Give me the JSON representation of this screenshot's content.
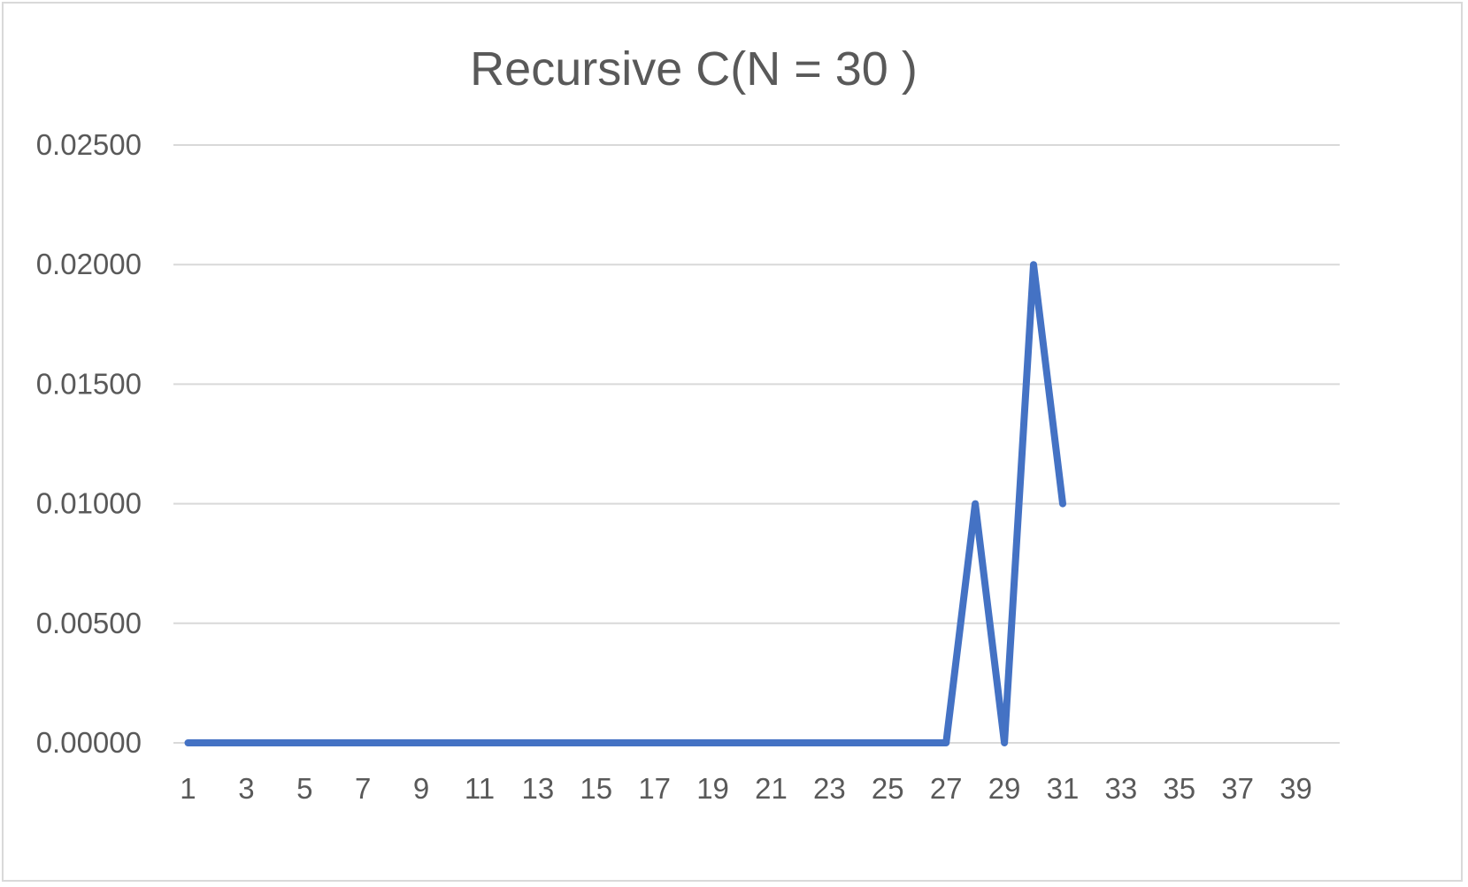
{
  "chart_data": {
    "type": "line",
    "title": "Recursive C(N = 30 )",
    "xlabel": "",
    "ylabel": "",
    "x_categories": [
      1,
      2,
      3,
      4,
      5,
      6,
      7,
      8,
      9,
      10,
      11,
      12,
      13,
      14,
      15,
      16,
      17,
      18,
      19,
      20,
      21,
      22,
      23,
      24,
      25,
      26,
      27,
      28,
      29,
      30,
      31,
      32,
      33,
      34,
      35,
      36,
      37,
      38,
      39,
      40
    ],
    "x_tick_labels": [
      "1",
      "3",
      "5",
      "7",
      "9",
      "11",
      "13",
      "15",
      "17",
      "19",
      "21",
      "23",
      "25",
      "27",
      "29",
      "31",
      "33",
      "35",
      "37",
      "39"
    ],
    "y_tick_labels": [
      "0.00000",
      "0.00500",
      "0.01000",
      "0.01500",
      "0.02000",
      "0.02500"
    ],
    "ylim": [
      0,
      0.025
    ],
    "y_ticks": [
      0,
      0.005,
      0.01,
      0.015,
      0.02,
      0.025
    ],
    "grid": true,
    "legend": "none",
    "series": [
      {
        "color": "#4472c4",
        "x": [
          1,
          2,
          3,
          4,
          5,
          6,
          7,
          8,
          9,
          10,
          11,
          12,
          13,
          14,
          15,
          16,
          17,
          18,
          19,
          20,
          21,
          22,
          23,
          24,
          25,
          26,
          27,
          28,
          29,
          30,
          31
        ],
        "values": [
          0,
          0,
          0,
          0,
          0,
          0,
          0,
          0,
          0,
          0,
          0,
          0,
          0,
          0,
          0,
          0,
          0,
          0,
          0,
          0,
          0,
          0,
          0,
          0,
          0,
          0,
          0,
          0.01,
          0,
          0.02,
          0.01
        ]
      }
    ]
  }
}
